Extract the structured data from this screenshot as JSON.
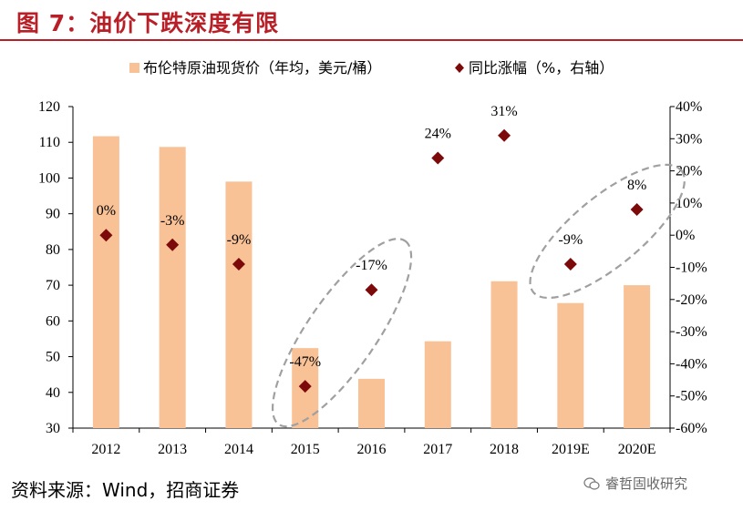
{
  "header": {
    "title": "图 7：油价下跌深度有限"
  },
  "footer": {
    "source": "资料来源：Wind，招商证券",
    "watermark": "睿哲固收研究"
  },
  "colors": {
    "bar": "#f8c196",
    "marker": "#7c0a0a",
    "title": "#b81f27",
    "ellipse": "#a0a0a0"
  },
  "chart_data": {
    "type": "bar+scatter",
    "categories": [
      "2012",
      "2013",
      "2014",
      "2015",
      "2016",
      "2017",
      "2018",
      "2019E",
      "2020E"
    ],
    "series": [
      {
        "name": "布伦特原油现货价（年均，美元/桶）",
        "type": "bar",
        "axis": "left",
        "values": [
          111.7,
          108.7,
          99.0,
          52.4,
          43.8,
          54.3,
          71.1,
          65.0,
          70.0
        ]
      },
      {
        "name": "同比涨幅（%，右轴）",
        "type": "scatter",
        "axis": "right",
        "values": [
          0,
          -3,
          -9,
          -47,
          -17,
          24,
          31,
          -9,
          8
        ],
        "labels": [
          "0%",
          "-3%",
          "-9%",
          "-47%",
          "-17%",
          "24%",
          "31%",
          "-9%",
          "8%"
        ]
      }
    ],
    "y_left": {
      "min": 30,
      "max": 120,
      "ticks": [
        "30",
        "40",
        "50",
        "60",
        "70",
        "80",
        "90",
        "100",
        "110",
        "120"
      ]
    },
    "y_right": {
      "min": -60,
      "max": 40,
      "ticks": [
        "-60%",
        "-50%",
        "-40%",
        "-30%",
        "-20%",
        "-10%",
        "0%",
        "10%",
        "20%",
        "30%",
        "40%"
      ]
    },
    "legend": {
      "position": "top"
    },
    "grid": false,
    "annotations": [
      "dashed ellipse around 2015-2016",
      "dashed ellipse around 2019E-2020E"
    ]
  }
}
